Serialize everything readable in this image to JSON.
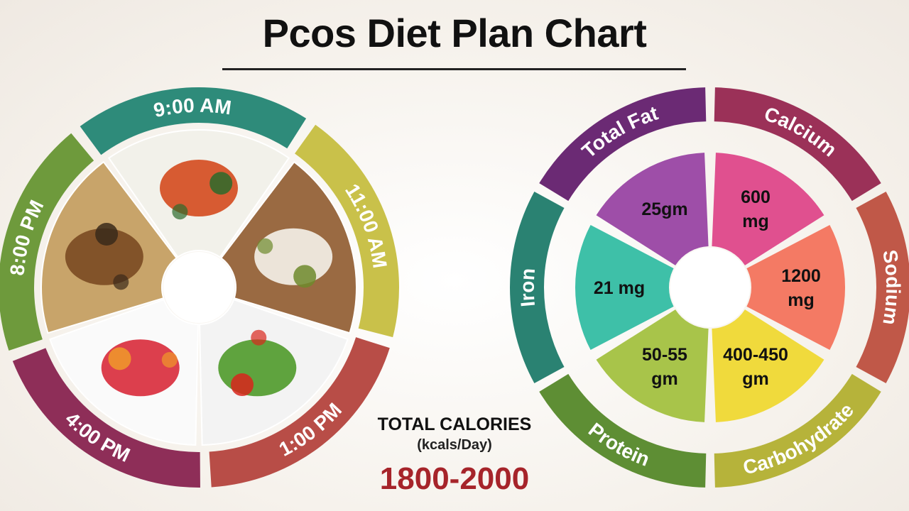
{
  "title": "Pcos Diet Plan Chart",
  "meal_times": [
    {
      "label": "9:00 AM",
      "color": "#2e8b7a",
      "food": "idli-sambar"
    },
    {
      "label": "11:00 AM",
      "color": "#c9c14a",
      "food": "sprouts-bowl"
    },
    {
      "label": "1:00 PM",
      "color": "#b84d47",
      "food": "vegetable-salad"
    },
    {
      "label": "4:00 PM",
      "color": "#8e2e58",
      "food": "fruit-bowl"
    },
    {
      "label": "8:00 PM",
      "color": "#6e9a3c",
      "food": "roti-curry"
    }
  ],
  "nutrients": [
    {
      "name": "Calcium",
      "value_lines": [
        "600",
        "mg"
      ],
      "ring_color": "#9b3158",
      "slice_color": "#e0508f"
    },
    {
      "name": "Sodium",
      "value_lines": [
        "1200",
        "mg"
      ],
      "ring_color": "#c05848",
      "slice_color": "#f47a64"
    },
    {
      "name": "Carbohydrate",
      "value_lines": [
        "400-450",
        "gm"
      ],
      "ring_color": "#b6b33a",
      "slice_color": "#f0da3c"
    },
    {
      "name": "Protein",
      "value_lines": [
        "50-55",
        "gm"
      ],
      "ring_color": "#5e8e34",
      "slice_color": "#a8c44a"
    },
    {
      "name": "Iron",
      "value_lines": [
        "21 mg"
      ],
      "ring_color": "#2a8272",
      "slice_color": "#3ec0a8"
    },
    {
      "name": "Total Fat",
      "value_lines": [
        "25gm"
      ],
      "ring_color": "#6b2a74",
      "slice_color": "#9e4ea8"
    }
  ],
  "calories": {
    "title": "TOTAL CALORIES",
    "unit": "(kcals/Day)",
    "value": "1800-2000"
  }
}
